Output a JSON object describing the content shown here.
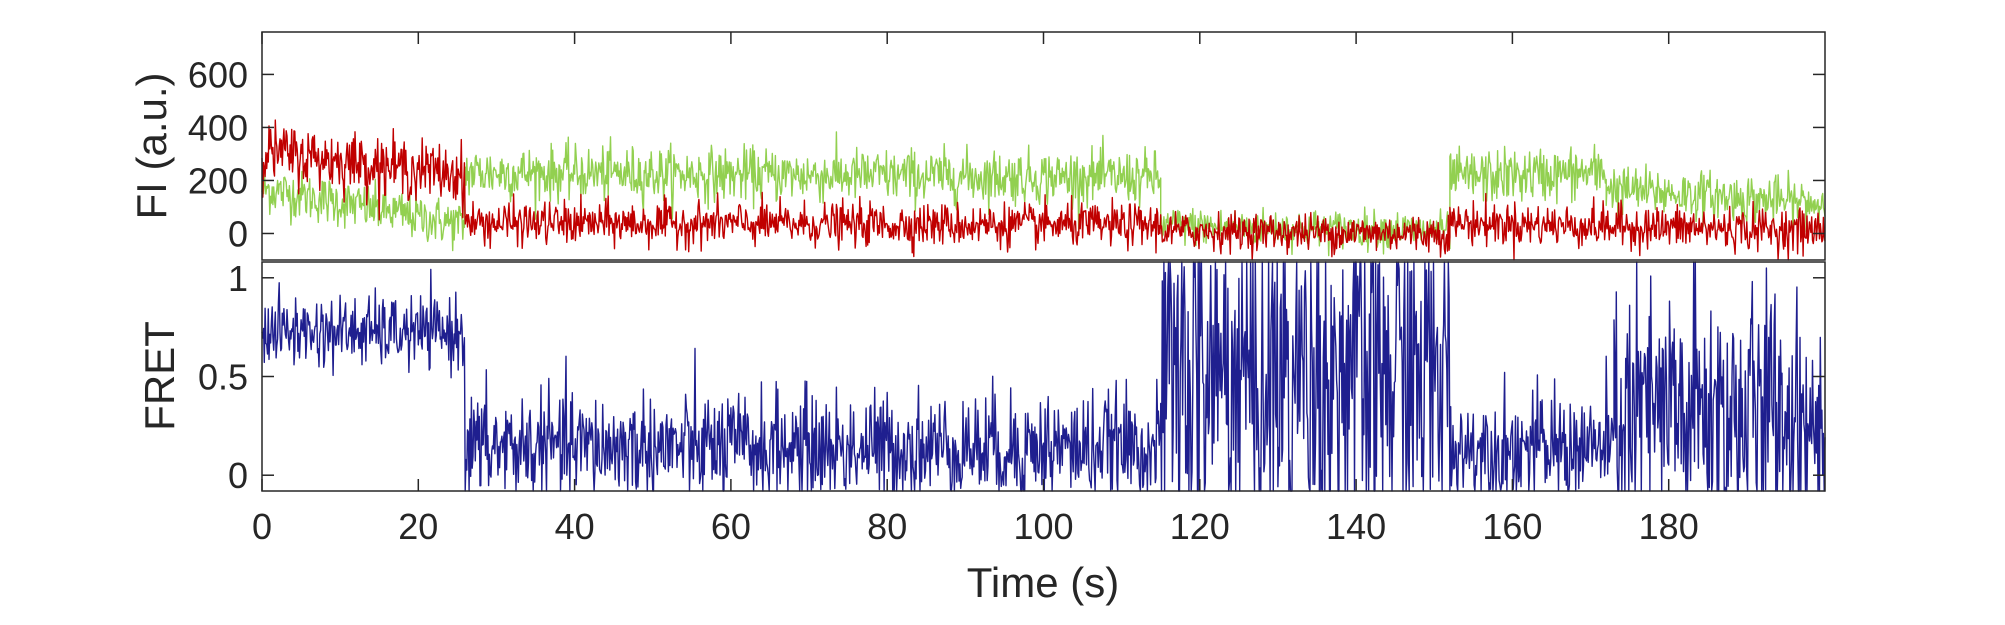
{
  "chart_data": [
    {
      "type": "line",
      "panel": "intensity",
      "ylabel": "FI (a.u.)",
      "xlabel": "",
      "xlim": [
        0,
        200
      ],
      "ylim": [
        -100,
        760
      ],
      "yticks": [
        0,
        200,
        400,
        600
      ],
      "yticklabels": [
        "0",
        "200",
        "400",
        "600"
      ],
      "grid": false,
      "legend": "none",
      "series": [
        {
          "color": "#92d050",
          "sample_interval_s": 0.1,
          "segments": [
            {
              "x_start": 0,
              "x_end": 26,
              "mean_start": 170,
              "mean_end": 30,
              "noise": 45
            },
            {
              "x_start": 26,
              "x_end": 115,
              "mean_start": 230,
              "mean_end": 210,
              "noise": 50
            },
            {
              "x_start": 115,
              "x_end": 152,
              "mean_start": 30,
              "mean_end": 10,
              "noise": 35
            },
            {
              "x_start": 152,
              "x_end": 172,
              "mean_start": 210,
              "mean_end": 230,
              "noise": 50
            },
            {
              "x_start": 172,
              "x_end": 200,
              "mean_start": 170,
              "mean_end": 110,
              "noise": 45
            }
          ]
        },
        {
          "color": "#c00000",
          "sample_interval_s": 0.1,
          "segments": [
            {
              "x_start": 0,
              "x_end": 26,
              "mean_start": 310,
              "mean_end": 220,
              "noise": 55
            },
            {
              "x_start": 26,
              "x_end": 115,
              "mean_start": 40,
              "mean_end": 30,
              "noise": 40
            },
            {
              "x_start": 115,
              "x_end": 152,
              "mean_start": 10,
              "mean_end": 0,
              "noise": 35
            },
            {
              "x_start": 152,
              "x_end": 200,
              "mean_start": 40,
              "mean_end": 10,
              "noise": 40
            }
          ]
        }
      ]
    },
    {
      "type": "line",
      "panel": "fret",
      "ylabel": "FRET",
      "xlabel": "Time (s)",
      "xlim": [
        0,
        200
      ],
      "ylim": [
        -0.08,
        1.08
      ],
      "yticks": [
        0,
        0.5,
        1
      ],
      "yticklabels": [
        "0",
        "0.5",
        "1"
      ],
      "xticks": [
        0,
        20,
        40,
        60,
        80,
        100,
        120,
        140,
        160,
        180
      ],
      "xticklabels": [
        "0",
        "20",
        "40",
        "60",
        "80",
        "100",
        "120",
        "140",
        "160",
        "180"
      ],
      "grid": false,
      "legend": "none",
      "series": [
        {
          "color": "#1f1f8f",
          "sample_interval_s": 0.1,
          "segments": [
            {
              "x_start": 0,
              "x_end": 26,
              "mean_start": 0.73,
              "mean_end": 0.72,
              "noise": 0.09,
              "clip": [
                -0.08,
                1.08
              ]
            },
            {
              "x_start": 26,
              "x_end": 115,
              "mean_start": 0.14,
              "mean_end": 0.14,
              "noise": 0.14,
              "clip": [
                -0.08,
                1.08
              ]
            },
            {
              "x_start": 115,
              "x_end": 152,
              "mean_start": 0.5,
              "mean_end": 0.5,
              "noise": 0.5,
              "clip": [
                -0.08,
                1.08
              ]
            },
            {
              "x_start": 152,
              "x_end": 173,
              "mean_start": 0.14,
              "mean_end": 0.14,
              "noise": 0.14,
              "clip": [
                -0.08,
                1.08
              ]
            },
            {
              "x_start": 173,
              "x_end": 200,
              "mean_start": 0.3,
              "mean_end": 0.3,
              "noise": 0.35,
              "clip": [
                -0.08,
                1.08
              ]
            }
          ]
        }
      ]
    }
  ]
}
